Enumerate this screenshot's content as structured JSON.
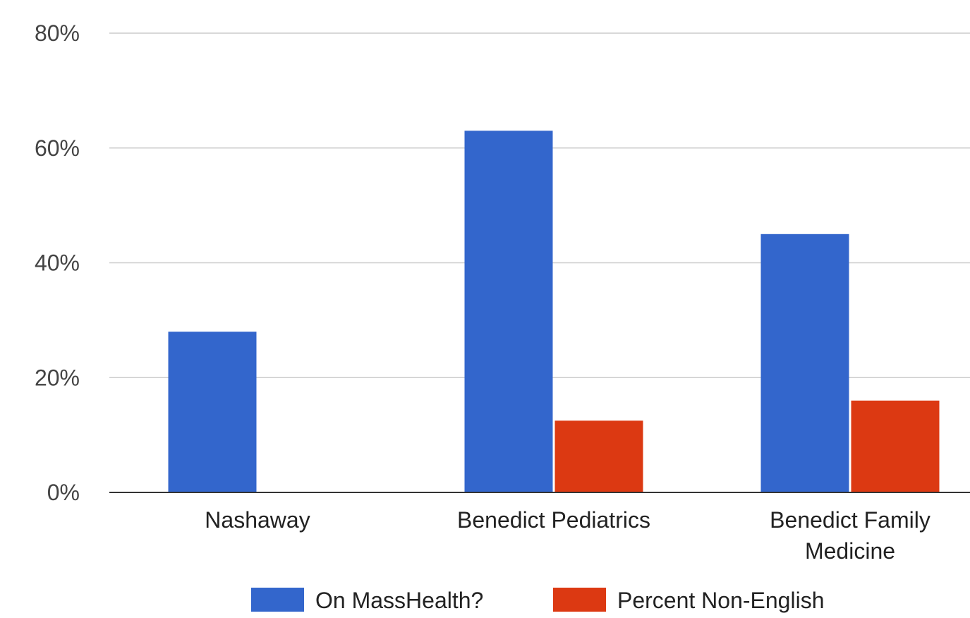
{
  "chart_data": {
    "type": "bar",
    "categories": [
      "Nashaway",
      "Benedict Pediatrics",
      "Benedict Family Medicine"
    ],
    "category_lines": [
      [
        "Nashaway"
      ],
      [
        "Benedict Pediatrics"
      ],
      [
        "Benedict Family",
        "Medicine"
      ]
    ],
    "series": [
      {
        "name": "On MassHealth?",
        "color": "#3366cc",
        "values": [
          28,
          63,
          45
        ]
      },
      {
        "name": "Percent Non-English",
        "color": "#dc3912",
        "values": [
          null,
          12.5,
          16
        ]
      }
    ],
    "y_ticks": [
      0,
      20,
      40,
      60,
      80
    ],
    "y_tick_labels": [
      "0%",
      "20%",
      "40%",
      "60%",
      "80%"
    ],
    "ylim": [
      0,
      80
    ],
    "grid": true,
    "legend_position": "bottom",
    "title": "",
    "xlabel": "",
    "ylabel": ""
  }
}
